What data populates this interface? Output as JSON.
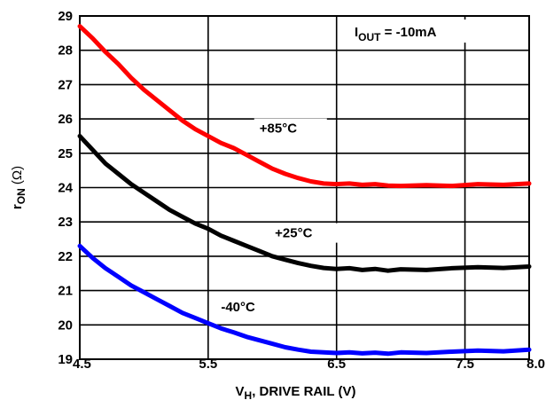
{
  "chart_data": {
    "type": "line",
    "xlabel_main": "V",
    "xlabel_sub": "H",
    "xlabel_rest": ", DRIVE RAIL (V)",
    "ylabel_main": "r",
    "ylabel_sub": "ON",
    "ylabel_rest": " (Ω)",
    "xlim": [
      4.5,
      8.0
    ],
    "ylim": [
      19,
      29
    ],
    "x_ticks": [
      4.5,
      5.5,
      6.5,
      7.5,
      8.0
    ],
    "x_tick_labels": [
      "4.5",
      "5.5",
      "6.5",
      "7.5",
      "8.0"
    ],
    "y_ticks": [
      19,
      20,
      21,
      22,
      23,
      24,
      25,
      26,
      27,
      28,
      29
    ],
    "y_tick_labels": [
      "19",
      "20",
      "21",
      "22",
      "23",
      "24",
      "25",
      "26",
      "27",
      "28",
      "29"
    ],
    "grid": true,
    "condition_main": "I",
    "condition_sub": "OUT",
    "condition_rest": " = -10mA",
    "series": [
      {
        "name": "+85°C",
        "color": "#ff0000",
        "x": [
          4.5,
          4.6,
          4.7,
          4.8,
          4.9,
          5.0,
          5.1,
          5.2,
          5.3,
          5.4,
          5.5,
          5.6,
          5.7,
          5.8,
          5.9,
          6.0,
          6.1,
          6.2,
          6.3,
          6.4,
          6.5,
          6.6,
          6.7,
          6.8,
          6.9,
          7.0,
          7.2,
          7.4,
          7.6,
          7.8,
          8.0
        ],
        "values": [
          28.7,
          28.35,
          27.95,
          27.6,
          27.2,
          26.85,
          26.55,
          26.25,
          25.95,
          25.7,
          25.5,
          25.3,
          25.15,
          24.95,
          24.75,
          24.55,
          24.4,
          24.28,
          24.18,
          24.12,
          24.1,
          24.12,
          24.08,
          24.1,
          24.06,
          24.05,
          24.07,
          24.05,
          24.1,
          24.08,
          24.12
        ]
      },
      {
        "name": "+25°C",
        "color": "#000000",
        "x": [
          4.5,
          4.6,
          4.7,
          4.8,
          4.9,
          5.0,
          5.1,
          5.2,
          5.3,
          5.4,
          5.5,
          5.6,
          5.7,
          5.8,
          5.9,
          6.0,
          6.1,
          6.2,
          6.3,
          6.4,
          6.5,
          6.6,
          6.7,
          6.8,
          6.9,
          7.0,
          7.2,
          7.4,
          7.6,
          7.8,
          8.0
        ],
        "values": [
          25.5,
          25.1,
          24.7,
          24.4,
          24.1,
          23.85,
          23.6,
          23.35,
          23.15,
          22.95,
          22.8,
          22.6,
          22.45,
          22.3,
          22.15,
          22.0,
          21.9,
          21.8,
          21.72,
          21.66,
          21.63,
          21.65,
          21.6,
          21.63,
          21.58,
          21.62,
          21.6,
          21.65,
          21.68,
          21.66,
          21.7
        ]
      },
      {
        "name": "-40°C",
        "color": "#0000ff",
        "x": [
          4.5,
          4.6,
          4.7,
          4.8,
          4.9,
          5.0,
          5.1,
          5.2,
          5.3,
          5.4,
          5.5,
          5.6,
          5.7,
          5.8,
          5.9,
          6.0,
          6.1,
          6.2,
          6.3,
          6.4,
          6.5,
          6.6,
          6.7,
          6.8,
          6.9,
          7.0,
          7.2,
          7.4,
          7.6,
          7.8,
          8.0
        ],
        "values": [
          22.3,
          21.95,
          21.65,
          21.4,
          21.15,
          20.95,
          20.75,
          20.55,
          20.35,
          20.2,
          20.05,
          19.9,
          19.78,
          19.65,
          19.55,
          19.45,
          19.35,
          19.28,
          19.22,
          19.2,
          19.18,
          19.2,
          19.17,
          19.19,
          19.16,
          19.2,
          19.18,
          19.22,
          19.25,
          19.23,
          19.28
        ]
      }
    ]
  }
}
